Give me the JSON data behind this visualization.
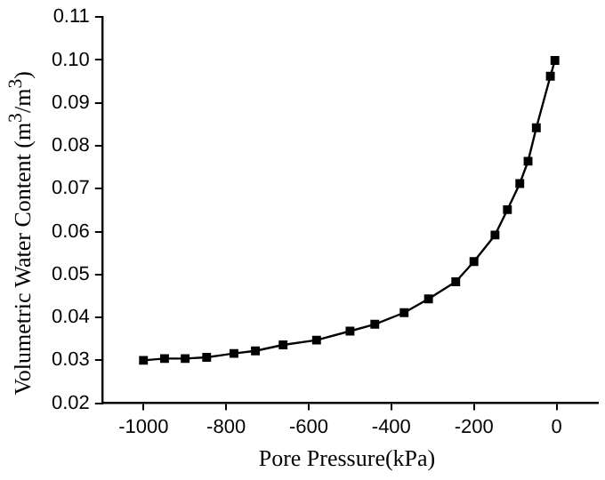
{
  "chart_data": {
    "type": "line",
    "xlabel": "Pore Pressure(kPa)",
    "ylabel": "Volumetric Water Content (m$^{3}$/m$^{3}$)",
    "marker": "square",
    "line_style": "solid",
    "grid": false,
    "legend": false,
    "xlim": [
      -1100,
      100
    ],
    "xticks": [
      -1000,
      -800,
      -600,
      -400,
      -200,
      0
    ],
    "ylim": [
      0.02,
      0.11
    ],
    "yticks": [
      0.02,
      0.03,
      0.04,
      0.05,
      0.06,
      0.07,
      0.08,
      0.09,
      {
        "value": 0.1,
        "label": "0.10"
      },
      0.11
    ],
    "series": [
      {
        "color": "#000000",
        "x": [
          -1000,
          -949,
          -899,
          -847,
          -781,
          -729,
          -662,
          -581,
          -500,
          -440,
          -369,
          -310,
          -244,
          -200,
          -149,
          -119,
          -89,
          -69,
          -49,
          -15,
          -4
        ],
        "values": [
          0.03,
          0.0304,
          0.0304,
          0.0307,
          0.0316,
          0.0322,
          0.0336,
          0.0347,
          0.0368,
          0.0384,
          0.0411,
          0.0443,
          0.0483,
          0.053,
          0.0592,
          0.0651,
          0.0712,
          0.0764,
          0.0842,
          0.0962,
          0.0999
        ]
      }
    ]
  }
}
